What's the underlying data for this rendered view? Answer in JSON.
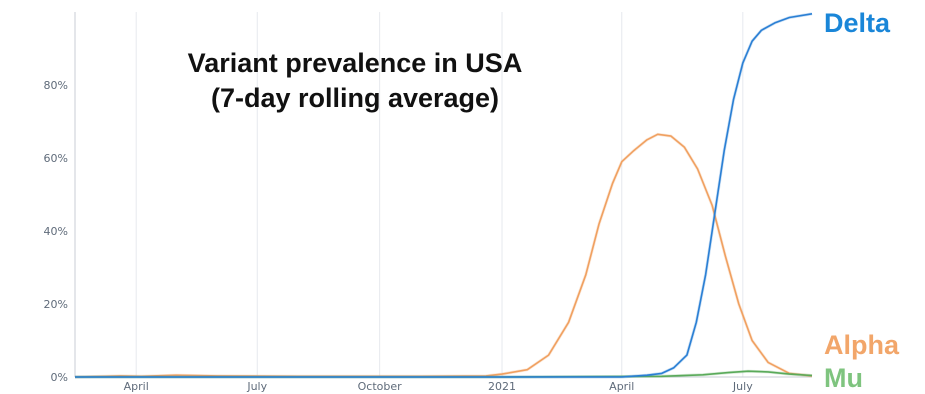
{
  "chart_data": {
    "type": "line",
    "title_lines": [
      "Variant prevalence in USA",
      "(7-day rolling average)"
    ],
    "xlabel": "",
    "ylabel": "",
    "ylim": [
      0,
      100
    ],
    "y_ticks": [
      0,
      20,
      40,
      60,
      80
    ],
    "y_tick_labels": [
      "0%",
      "20%",
      "40%",
      "60%",
      "80%"
    ],
    "xlim": [
      "2020-02-15",
      "2021-08-22"
    ],
    "x_ticks": [
      "2020-04-01",
      "2020-07-01",
      "2020-10-01",
      "2021-01-01",
      "2021-04-01",
      "2021-07-01"
    ],
    "x_tick_labels": [
      "April",
      "July",
      "October",
      "2021",
      "April",
      "July"
    ],
    "grid": true,
    "legend": "direct-labels-right",
    "series": [
      {
        "name": "Delta",
        "color": "#2a7fd4",
        "points": [
          [
            "2020-02-15",
            0
          ],
          [
            "2021-04-01",
            0
          ],
          [
            "2021-04-20",
            0.5
          ],
          [
            "2021-05-01",
            1
          ],
          [
            "2021-05-10",
            2.5
          ],
          [
            "2021-05-20",
            6
          ],
          [
            "2021-05-27",
            15
          ],
          [
            "2021-06-03",
            28
          ],
          [
            "2021-06-10",
            45
          ],
          [
            "2021-06-17",
            62
          ],
          [
            "2021-06-24",
            76
          ],
          [
            "2021-07-01",
            86
          ],
          [
            "2021-07-08",
            92
          ],
          [
            "2021-07-15",
            95
          ],
          [
            "2021-07-25",
            97
          ],
          [
            "2021-08-05",
            98.5
          ],
          [
            "2021-08-22",
            99.5
          ]
        ]
      },
      {
        "name": "Alpha",
        "color": "#f0a060",
        "points": [
          [
            "2020-02-15",
            0
          ],
          [
            "2020-03-20",
            0.3
          ],
          [
            "2020-04-05",
            0.2
          ],
          [
            "2020-05-01",
            0.5
          ],
          [
            "2020-06-01",
            0.3
          ],
          [
            "2020-08-01",
            0.2
          ],
          [
            "2020-11-01",
            0.2
          ],
          [
            "2020-12-20",
            0.3
          ],
          [
            "2021-01-01",
            0.8
          ],
          [
            "2021-01-20",
            2
          ],
          [
            "2021-02-05",
            6
          ],
          [
            "2021-02-20",
            15
          ],
          [
            "2021-03-05",
            28
          ],
          [
            "2021-03-15",
            42
          ],
          [
            "2021-03-25",
            53
          ],
          [
            "2021-04-01",
            59
          ],
          [
            "2021-04-10",
            62
          ],
          [
            "2021-04-20",
            65
          ],
          [
            "2021-04-28",
            66.5
          ],
          [
            "2021-05-08",
            66
          ],
          [
            "2021-05-18",
            63
          ],
          [
            "2021-05-28",
            57
          ],
          [
            "2021-06-08",
            47
          ],
          [
            "2021-06-18",
            33
          ],
          [
            "2021-06-28",
            20
          ],
          [
            "2021-07-08",
            10
          ],
          [
            "2021-07-20",
            4
          ],
          [
            "2021-08-05",
            1
          ],
          [
            "2021-08-22",
            0.3
          ]
        ]
      },
      {
        "name": "Mu",
        "color": "#5aaa5a",
        "points": [
          [
            "2020-02-15",
            0
          ],
          [
            "2021-01-01",
            0
          ],
          [
            "2021-05-01",
            0.2
          ],
          [
            "2021-06-01",
            0.6
          ],
          [
            "2021-06-20",
            1.2
          ],
          [
            "2021-07-05",
            1.6
          ],
          [
            "2021-07-20",
            1.4
          ],
          [
            "2021-08-05",
            0.8
          ],
          [
            "2021-08-22",
            0.4
          ]
        ]
      }
    ],
    "label_colors": {
      "Delta": "#1a86d8",
      "Alpha": "#f2a66a",
      "Mu": "#7fc47f"
    }
  }
}
